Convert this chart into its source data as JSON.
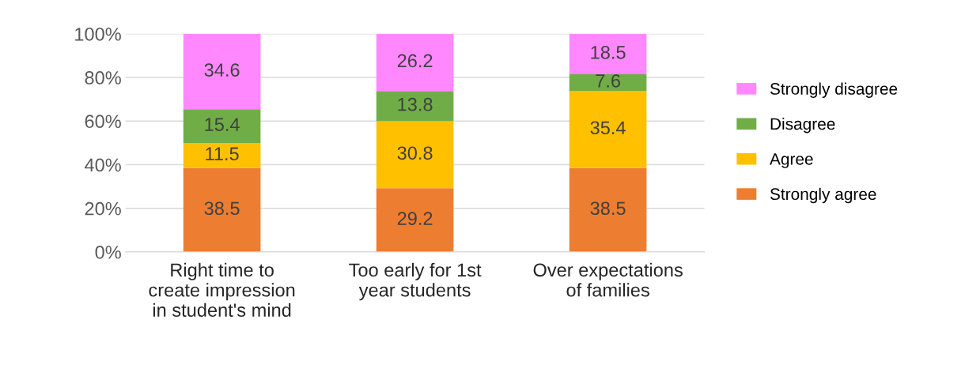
{
  "chart_data": {
    "type": "bar",
    "stacked": true,
    "categories": [
      "Right time to\ncreate impression\nin student's mind",
      "Too early for 1st\nyear students",
      "Over expectations\nof families"
    ],
    "series": [
      {
        "name": "Strongly agree",
        "color": "#ed7d31",
        "values": [
          38.5,
          29.2,
          38.5
        ]
      },
      {
        "name": "Agree",
        "color": "#ffc000",
        "values": [
          11.5,
          30.8,
          35.4
        ]
      },
      {
        "name": "Disagree",
        "color": "#70ad47",
        "values": [
          15.4,
          13.8,
          7.6
        ]
      },
      {
        "name": "Strongly disagree",
        "color": "#ff88ff",
        "values": [
          34.6,
          26.2,
          18.5
        ]
      }
    ],
    "ylim": [
      0,
      100
    ],
    "yticks": [
      {
        "value": 0,
        "label": "0%"
      },
      {
        "value": 20,
        "label": "20%"
      },
      {
        "value": 40,
        "label": "40%"
      },
      {
        "value": 60,
        "label": "60%"
      },
      {
        "value": 80,
        "label": "80%"
      },
      {
        "value": 100,
        "label": "100%"
      }
    ],
    "grid": "y",
    "legend": "right",
    "data_labels": true
  }
}
